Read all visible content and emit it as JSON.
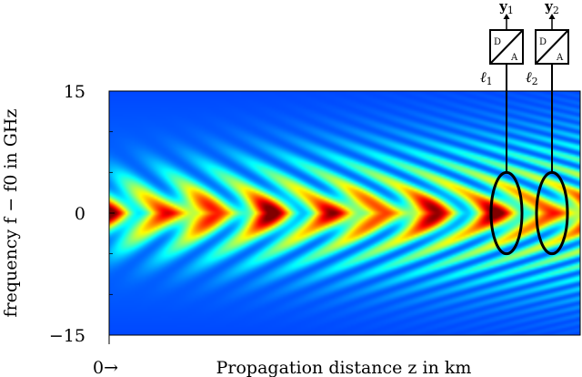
{
  "chart_data": {
    "type": "heatmap",
    "xlabel": "Propagation distance z in km",
    "ylabel": "frequency f − f0 in GHz",
    "ylim": [
      -15,
      15
    ],
    "y_ticks": [
      {
        "label": "15",
        "value": 15
      },
      {
        "label": "0",
        "value": 0
      },
      {
        "label": "−15",
        "value": -15
      }
    ],
    "x_origin_label": "0→",
    "colormap": "jet",
    "pattern": "chevron-shaped spectral fringes opening toward increasing z; central lobe at 0 GHz",
    "receivers": [
      {
        "output": "y1",
        "link": "ℓ1",
        "converter_top": "D",
        "converter_bottom": "A",
        "center_y_ghz": 0,
        "half_width_ghz": 5
      },
      {
        "output": "y2",
        "link": "ℓ2",
        "converter_top": "D",
        "converter_bottom": "A",
        "center_y_ghz": 0,
        "half_width_ghz": 5
      }
    ]
  }
}
